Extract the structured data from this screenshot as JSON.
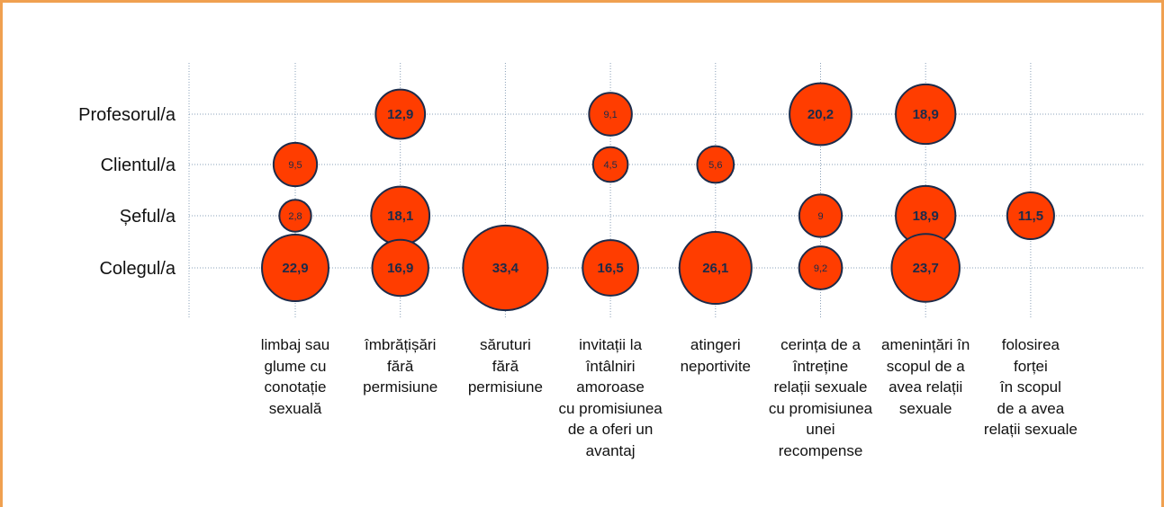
{
  "chart_data": {
    "type": "bubble",
    "categories": [
      "limbaj sau\nglume cu\nconotație\nsexuală",
      "îmbrățișări\nfără\npermisiune",
      "săruturi\nfără\npermisiune",
      "invitații la\nîntâlniri\namoroase\ncu promisiunea\nde a oferi un\navantaj",
      "atingeri\nneportivite",
      "cerința de a\nîntreține\nrelații sexuale\ncu promisiunea\nunei\nrecompense",
      "amenințări în\nscopul de a\navea relații\nsexuale",
      "folosirea\nforței\nîn scopul\nde a avea\nrelații sexuale"
    ],
    "series": [
      {
        "name": "Profesorul/a",
        "color": "#ff3d00",
        "values": [
          null,
          12.9,
          null,
          9.1,
          null,
          20.2,
          18.9,
          null
        ],
        "value_labels": [
          null,
          "12,9",
          null,
          "9,1",
          null,
          "20,2",
          "18,9",
          null
        ]
      },
      {
        "name": "Clientul/a",
        "color": "#ff3d00",
        "values": [
          9.5,
          null,
          null,
          4.5,
          5.6,
          null,
          null,
          null
        ],
        "value_labels": [
          "9,5",
          null,
          null,
          "4,5",
          "5,6",
          null,
          null,
          null
        ]
      },
      {
        "name": "Șeful/a",
        "color": "#ff3d00",
        "values": [
          2.8,
          18.1,
          null,
          null,
          null,
          9,
          18.9,
          11.5
        ],
        "value_labels": [
          "2,8",
          "18,1",
          null,
          null,
          null,
          "9",
          "18,9",
          "11,5"
        ]
      },
      {
        "name": "Colegul/a",
        "color": "#ff3d00",
        "values": [
          22.9,
          16.9,
          33.4,
          16.5,
          26.1,
          9.2,
          23.7,
          null
        ],
        "value_labels": [
          "22,9",
          "16,9",
          "33,4",
          "16,5",
          "26,1",
          "9,2",
          "23,7",
          null
        ]
      }
    ],
    "grid": true
  }
}
